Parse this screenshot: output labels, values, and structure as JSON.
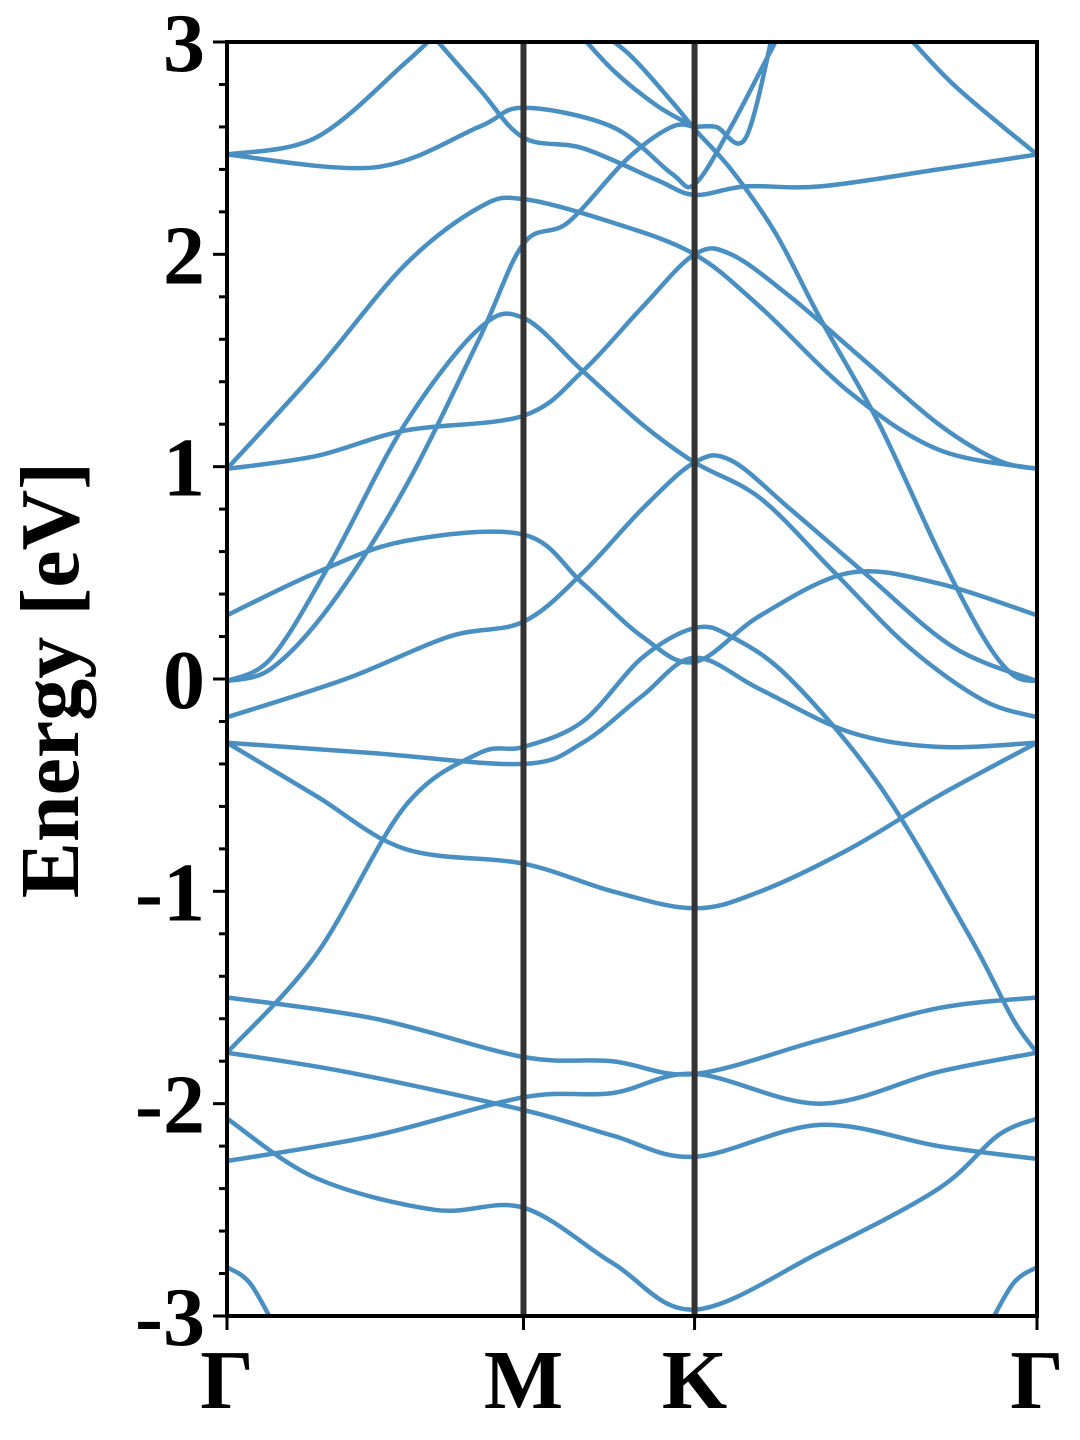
{
  "chart_data": {
    "type": "line",
    "title": "",
    "xlabel": "",
    "ylabel": "Energy [eV]",
    "ylim": [
      -3,
      3
    ],
    "xlim": [
      0,
      2.732
    ],
    "yticks": [
      "3",
      "2",
      "1",
      "0",
      "-1",
      "-2",
      "-3"
    ],
    "ytick_values": [
      3,
      2,
      1,
      0,
      -1,
      -2,
      -3
    ],
    "kpoints": [
      {
        "label": "Γ",
        "x": 0.0
      },
      {
        "label": "M",
        "x": 1.0
      },
      {
        "label": "K",
        "x": 1.577
      },
      {
        "label": "Γ",
        "x": 2.732
      }
    ],
    "grid": false,
    "legend": "none",
    "colors": {
      "bands": "#4a8fc2",
      "kpath_lines": "#333333"
    },
    "series": [
      {
        "values": [
          [
            0,
            2.47
          ],
          [
            0.3,
            2.55
          ],
          [
            0.6,
            2.9
          ],
          [
            0.75,
            3.1
          ]
        ]
      },
      {
        "values": [
          [
            0,
            2.47
          ],
          [
            0.5,
            2.41
          ],
          [
            0.85,
            2.6
          ],
          [
            1.0,
            2.69
          ],
          [
            1.3,
            2.6
          ],
          [
            1.5,
            2.38
          ],
          [
            1.577,
            2.33
          ],
          [
            1.7,
            2.6
          ],
          [
            1.85,
            3.0
          ],
          [
            1.9,
            3.1
          ]
        ]
      },
      {
        "values": [
          [
            0.65,
            3.1
          ],
          [
            0.85,
            2.78
          ],
          [
            1.0,
            2.55
          ],
          [
            1.2,
            2.5
          ],
          [
            1.45,
            2.35
          ],
          [
            1.577,
            2.28
          ],
          [
            1.75,
            2.32
          ],
          [
            2.0,
            2.32
          ],
          [
            2.4,
            2.4
          ],
          [
            2.732,
            2.47
          ]
        ]
      },
      {
        "values": [
          [
            2.732,
            2.47
          ],
          [
            2.45,
            2.8
          ],
          [
            2.25,
            3.1
          ]
        ]
      },
      {
        "values": [
          [
            1.2,
            3.1
          ],
          [
            1.35,
            2.95
          ],
          [
            1.5,
            2.72
          ],
          [
            1.577,
            2.59
          ],
          [
            1.7,
            2.4
          ],
          [
            1.85,
            2.1
          ],
          [
            2.0,
            1.7
          ],
          [
            2.2,
            1.2
          ],
          [
            2.4,
            0.6
          ],
          [
            2.55,
            0.2
          ],
          [
            2.65,
            0.02
          ],
          [
            2.732,
            -0.01
          ]
        ]
      },
      {
        "values": [
          [
            1.15,
            3.1
          ],
          [
            1.3,
            2.87
          ],
          [
            1.45,
            2.7
          ],
          [
            1.577,
            2.6
          ]
        ]
      },
      {
        "values": [
          [
            1.577,
            2.6
          ],
          [
            1.65,
            2.6
          ],
          [
            1.75,
            2.55
          ],
          [
            1.85,
            3.1
          ]
        ]
      },
      {
        "values": [
          [
            1.577,
            2.6
          ],
          [
            1.5,
            2.6
          ],
          [
            1.35,
            2.45
          ],
          [
            1.15,
            2.15
          ],
          [
            1.0,
            2.05
          ],
          [
            0.85,
            1.6
          ],
          [
            0.6,
            0.9
          ],
          [
            0.35,
            0.35
          ],
          [
            0.15,
            0.05
          ],
          [
            0,
            -0.01
          ]
        ]
      },
      {
        "values": [
          [
            0,
            0.99
          ],
          [
            0.3,
            1.45
          ],
          [
            0.6,
            1.95
          ],
          [
            0.85,
            2.22
          ],
          [
            1.0,
            2.26
          ],
          [
            1.3,
            2.15
          ],
          [
            1.577,
            2.0
          ],
          [
            1.8,
            1.75
          ],
          [
            2.1,
            1.35
          ],
          [
            2.4,
            1.08
          ],
          [
            2.732,
            0.99
          ]
        ]
      },
      {
        "values": [
          [
            0,
            -0.01
          ],
          [
            0.15,
            0.1
          ],
          [
            0.35,
            0.55
          ],
          [
            0.6,
            1.2
          ],
          [
            0.85,
            1.65
          ],
          [
            1.0,
            1.7
          ],
          [
            1.2,
            1.45
          ],
          [
            1.4,
            1.2
          ],
          [
            1.577,
            1.02
          ],
          [
            1.8,
            0.85
          ],
          [
            2.05,
            0.5
          ],
          [
            2.3,
            0.15
          ],
          [
            2.55,
            -0.1
          ],
          [
            2.732,
            -0.18
          ]
        ]
      },
      {
        "values": [
          [
            0,
            0.99
          ],
          [
            0.3,
            1.05
          ],
          [
            0.6,
            1.17
          ],
          [
            1.0,
            1.24
          ],
          [
            1.2,
            1.45
          ],
          [
            1.4,
            1.75
          ],
          [
            1.577,
            2.0
          ],
          [
            1.7,
            2.0
          ],
          [
            1.9,
            1.8
          ],
          [
            2.15,
            1.5
          ],
          [
            2.4,
            1.2
          ],
          [
            2.6,
            1.03
          ],
          [
            2.732,
            0.99
          ]
        ]
      },
      {
        "values": [
          [
            0,
            0.3
          ],
          [
            0.3,
            0.5
          ],
          [
            0.6,
            0.65
          ],
          [
            1.0,
            0.68
          ],
          [
            1.2,
            0.45
          ],
          [
            1.4,
            0.2
          ],
          [
            1.577,
            0.08
          ],
          [
            1.8,
            0.3
          ],
          [
            2.1,
            0.5
          ],
          [
            2.4,
            0.45
          ],
          [
            2.732,
            0.3
          ]
        ]
      },
      {
        "values": [
          [
            0,
            -0.18
          ],
          [
            0.4,
            0.0
          ],
          [
            0.75,
            0.2
          ],
          [
            1.0,
            0.27
          ],
          [
            1.2,
            0.5
          ],
          [
            1.4,
            0.8
          ],
          [
            1.577,
            1.02
          ],
          [
            1.7,
            1.03
          ],
          [
            1.9,
            0.8
          ],
          [
            2.15,
            0.5
          ],
          [
            2.45,
            0.15
          ],
          [
            2.732,
            -0.01
          ]
        ]
      },
      {
        "values": [
          [
            0,
            -0.3
          ],
          [
            0.5,
            -0.35
          ],
          [
            1.0,
            -0.4
          ],
          [
            1.2,
            -0.3
          ],
          [
            1.4,
            -0.08
          ],
          [
            1.577,
            0.1
          ],
          [
            1.8,
            -0.05
          ],
          [
            2.1,
            -0.25
          ],
          [
            2.4,
            -0.32
          ],
          [
            2.732,
            -0.3
          ]
        ]
      },
      {
        "values": [
          [
            0,
            -0.3
          ],
          [
            0.3,
            -0.55
          ],
          [
            0.6,
            -0.8
          ],
          [
            1.0,
            -0.87
          ],
          [
            1.3,
            -1.0
          ],
          [
            1.577,
            -1.08
          ],
          [
            1.8,
            -1.0
          ],
          [
            2.1,
            -0.8
          ],
          [
            2.4,
            -0.55
          ],
          [
            2.732,
            -0.3
          ]
        ]
      },
      {
        "values": [
          [
            0,
            -1.76
          ],
          [
            0.3,
            -1.3
          ],
          [
            0.6,
            -0.6
          ],
          [
            0.85,
            -0.35
          ],
          [
            1.0,
            -0.32
          ],
          [
            1.2,
            -0.2
          ],
          [
            1.4,
            0.1
          ],
          [
            1.577,
            0.24
          ],
          [
            1.7,
            0.2
          ],
          [
            1.9,
            0.0
          ],
          [
            2.2,
            -0.5
          ],
          [
            2.5,
            -1.2
          ],
          [
            2.65,
            -1.6
          ],
          [
            2.732,
            -1.76
          ]
        ]
      },
      {
        "values": [
          [
            0,
            -1.5
          ],
          [
            0.5,
            -1.6
          ],
          [
            1.0,
            -1.78
          ],
          [
            1.3,
            -1.8
          ],
          [
            1.577,
            -1.86
          ],
          [
            2.0,
            -1.7
          ],
          [
            2.4,
            -1.55
          ],
          [
            2.732,
            -1.5
          ]
        ]
      },
      {
        "values": [
          [
            0,
            -1.76
          ],
          [
            0.4,
            -1.85
          ],
          [
            1.0,
            -2.03
          ],
          [
            1.3,
            -2.15
          ],
          [
            1.577,
            -2.25
          ],
          [
            2.0,
            -2.1
          ],
          [
            2.4,
            -2.2
          ],
          [
            2.732,
            -2.26
          ]
        ]
      },
      {
        "values": [
          [
            0,
            -2.27
          ],
          [
            0.5,
            -2.15
          ],
          [
            1.0,
            -1.97
          ],
          [
            1.3,
            -1.95
          ],
          [
            1.577,
            -1.86
          ],
          [
            2.0,
            -2.0
          ],
          [
            2.4,
            -1.85
          ],
          [
            2.732,
            -1.76
          ]
        ]
      },
      {
        "values": [
          [
            0,
            -2.07
          ],
          [
            0.3,
            -2.35
          ],
          [
            0.7,
            -2.5
          ],
          [
            1.0,
            -2.49
          ],
          [
            1.3,
            -2.75
          ],
          [
            1.577,
            -2.97
          ],
          [
            2.0,
            -2.7
          ],
          [
            2.4,
            -2.4
          ],
          [
            2.6,
            -2.15
          ],
          [
            2.732,
            -2.07
          ]
        ]
      },
      {
        "values": [
          [
            0,
            -2.77
          ],
          [
            0.08,
            -2.85
          ],
          [
            0.18,
            -3.1
          ]
        ]
      },
      {
        "values": [
          [
            2.732,
            -2.77
          ],
          [
            2.65,
            -2.85
          ],
          [
            2.55,
            -3.1
          ]
        ]
      }
    ]
  }
}
